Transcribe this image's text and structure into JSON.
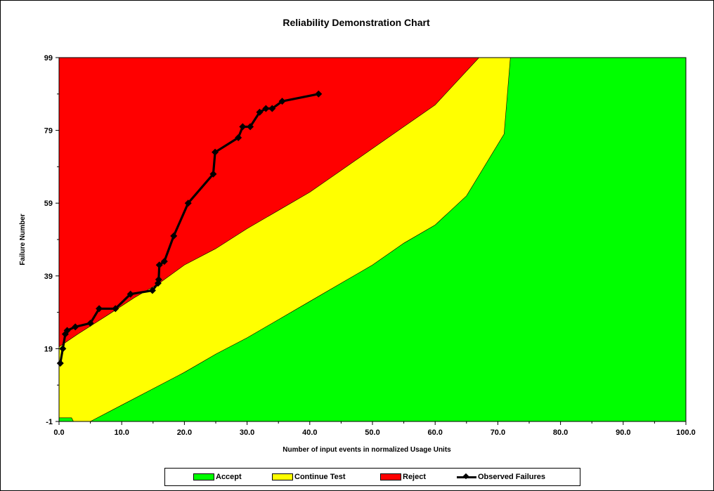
{
  "chart_data": {
    "type": "area",
    "title": "Reliability Demonstration Chart",
    "xlabel": "Number of input events in normalized Usage Units",
    "ylabel": "Failure Number",
    "xlim": [
      0,
      100
    ],
    "ylim": [
      -1,
      99
    ],
    "x_ticks": [
      "0.0",
      "10.0",
      "20.0",
      "30.0",
      "40.0",
      "50.0",
      "60.0",
      "70.0",
      "80.0",
      "90.0",
      "100.0"
    ],
    "y_ticks": [
      "-1",
      "19",
      "39",
      "59",
      "79",
      "99"
    ],
    "grid": false,
    "legend_position": "bottom",
    "regions": [
      {
        "name": "Accept",
        "color": "#00ff00"
      },
      {
        "name": "Continue Test",
        "color": "#ffff00"
      },
      {
        "name": "Reject",
        "color": "#ff0000"
      }
    ],
    "reject_boundary": {
      "x": [
        0,
        3,
        8,
        12,
        16,
        20,
        25,
        30,
        35,
        40,
        45,
        50,
        55,
        60,
        67
      ],
      "y": [
        19.5,
        23,
        28.5,
        33,
        37,
        42,
        46.5,
        52,
        57,
        62,
        68,
        74,
        80,
        86,
        99
      ]
    },
    "accept_boundary": {
      "x": [
        5,
        10,
        15,
        20,
        25,
        30,
        35,
        40,
        45,
        50,
        55,
        60,
        65,
        71,
        72
      ],
      "y": [
        -1,
        3.5,
        8,
        12.5,
        17.5,
        22,
        27,
        32,
        37,
        42,
        48,
        53,
        61,
        78,
        99
      ]
    },
    "accept_corner": {
      "x": [
        0,
        2
      ],
      "y": [
        0,
        0
      ]
    },
    "series": [
      {
        "name": "Observed Failures",
        "color": "#000000",
        "x": [
          0.2,
          0.6,
          1,
          1.3,
          2.6,
          5,
          6.4,
          9,
          11.4,
          14.9,
          15.8,
          15.9,
          16,
          16.8,
          18.3,
          20.6,
          24.6,
          24.9,
          28.6,
          29.3,
          30.5,
          32,
          33,
          34,
          35.6,
          41.4
        ],
        "y": [
          15,
          19,
          23,
          24,
          25,
          26,
          30,
          30,
          34,
          35,
          37,
          38,
          42,
          43,
          50,
          59,
          67,
          73,
          77,
          80,
          80,
          84,
          85,
          85,
          87,
          89
        ]
      }
    ]
  }
}
